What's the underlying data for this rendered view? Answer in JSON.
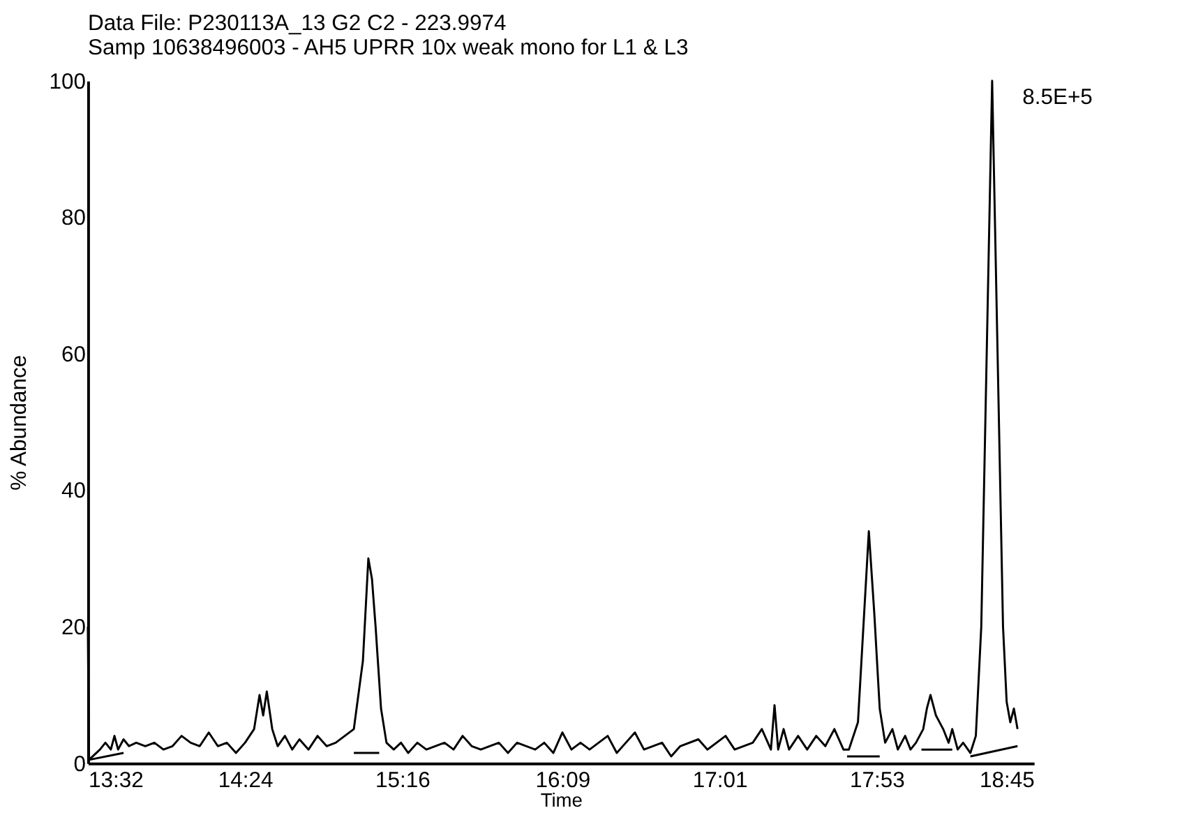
{
  "chart_data": {
    "type": "line",
    "title": "Data File: P230113A_13    G2  C2 - 223.9974",
    "subtitle": "Samp 10638496003 - AH5 UPRR 10x weak mono for L1 & L3",
    "xlabel": "Time",
    "ylabel": "% Abundance",
    "xlim": [
      13.5333,
      18.75
    ],
    "ylim": [
      0,
      100
    ],
    "xticks": [
      {
        "value": 13.5333,
        "label": "13:32"
      },
      {
        "value": 14.4,
        "label": "14:24"
      },
      {
        "value": 15.2667,
        "label": "15:16"
      },
      {
        "value": 16.15,
        "label": "16:09"
      },
      {
        "value": 17.0167,
        "label": "17:01"
      },
      {
        "value": 17.8833,
        "label": "17:53"
      },
      {
        "value": 18.75,
        "label": "18:45"
      }
    ],
    "yticks": [
      0,
      20,
      40,
      60,
      80,
      100
    ],
    "grid": false,
    "marker": "none",
    "line_style": "solid",
    "annotations": [
      {
        "text": "8.5E+5",
        "x": 18.52,
        "y": 100
      }
    ],
    "series": [
      {
        "color": "#000000",
        "x": [
          13.5333,
          13.54,
          13.56,
          13.6,
          13.63,
          13.66,
          13.68,
          13.7,
          13.73,
          13.76,
          13.8,
          13.85,
          13.9,
          13.95,
          14.0,
          14.05,
          14.1,
          14.15,
          14.2,
          14.25,
          14.3,
          14.35,
          14.4,
          14.45,
          14.48,
          14.5,
          14.52,
          14.55,
          14.58,
          14.62,
          14.66,
          14.7,
          14.75,
          14.8,
          14.85,
          14.9,
          15.0,
          15.05,
          15.08,
          15.1,
          15.12,
          15.15,
          15.18,
          15.22,
          15.26,
          15.3,
          15.35,
          15.4,
          15.5,
          15.55,
          15.6,
          15.65,
          15.7,
          15.8,
          15.85,
          15.9,
          16.0,
          16.05,
          16.1,
          16.15,
          16.2,
          16.25,
          16.3,
          16.4,
          16.45,
          16.5,
          16.55,
          16.6,
          16.7,
          16.75,
          16.8,
          16.9,
          16.95,
          17.05,
          17.1,
          17.2,
          17.25,
          17.3,
          17.32,
          17.34,
          17.37,
          17.4,
          17.45,
          17.5,
          17.55,
          17.6,
          17.65,
          17.7,
          17.73,
          17.78,
          17.81,
          17.84,
          17.87,
          17.9,
          17.93,
          17.97,
          18.0,
          18.04,
          18.07,
          18.1,
          18.14,
          18.16,
          18.18,
          18.21,
          18.25,
          18.28,
          18.3,
          18.33,
          18.36,
          18.4,
          18.43,
          18.46,
          18.49,
          18.52,
          18.55,
          18.58,
          18.6,
          18.62,
          18.64,
          18.66
        ],
        "values": [
          20,
          0.5,
          1,
          2,
          3,
          2,
          4,
          2,
          3.5,
          2.5,
          3,
          2.5,
          3,
          2,
          2.5,
          4,
          3,
          2.5,
          4.5,
          2.5,
          3,
          1.5,
          3,
          5,
          10,
          7,
          10.5,
          5,
          2.5,
          4,
          2,
          3.5,
          2,
          4,
          2.5,
          3,
          5,
          15,
          30,
          27,
          20,
          8,
          3,
          2,
          3,
          1.5,
          3,
          2,
          3,
          2,
          4,
          2.5,
          2,
          3,
          1.5,
          3,
          2,
          3,
          1.5,
          4.5,
          2,
          3,
          2,
          4,
          1.5,
          3,
          4.5,
          2,
          3,
          1,
          2.5,
          3.5,
          2,
          4,
          2,
          3,
          5,
          2,
          8.5,
          2,
          5,
          2,
          4,
          2,
          4,
          2.5,
          5,
          2,
          2,
          6,
          20,
          34,
          22,
          8,
          3,
          5,
          2,
          4,
          2,
          3,
          5,
          8,
          10,
          7,
          5,
          3,
          5,
          2,
          3,
          1.5,
          4,
          20,
          60,
          100,
          60,
          20,
          9,
          6,
          8,
          5
        ]
      },
      {
        "color": "#000000",
        "x": [
          13.54,
          13.73
        ],
        "values": [
          0.5,
          1.5
        ]
      },
      {
        "color": "#000000",
        "x": [
          15.0,
          15.14
        ],
        "values": [
          1.5,
          1.5
        ]
      },
      {
        "color": "#000000",
        "x": [
          17.72,
          17.9
        ],
        "values": [
          1,
          1
        ]
      },
      {
        "color": "#000000",
        "x": [
          18.13,
          18.3
        ],
        "values": [
          2,
          2
        ]
      },
      {
        "color": "#000000",
        "x": [
          18.4,
          18.66
        ],
        "values": [
          1,
          2.5
        ]
      }
    ]
  }
}
